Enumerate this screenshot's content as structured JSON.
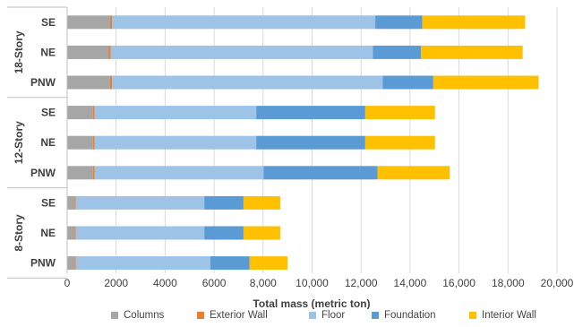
{
  "chart_data": {
    "type": "bar",
    "orientation": "horizontal",
    "stacked": true,
    "xlabel": "Total mass (metric ton)",
    "ylabel": "",
    "xlim": [
      0,
      20000
    ],
    "x_ticks": [
      0,
      2000,
      4000,
      6000,
      8000,
      10000,
      12000,
      14000,
      16000,
      18000,
      20000
    ],
    "x_tick_labels": [
      "0",
      "2000",
      "4000",
      "6000",
      "8,000",
      "10,000",
      "12,000",
      "14,000",
      "16,000",
      "18,000",
      "20,000"
    ],
    "grid": true,
    "legend_position": "bottom",
    "groups": [
      {
        "name": "18-Story",
        "categories": [
          "SE",
          "NE",
          "PNW"
        ]
      },
      {
        "name": "12-Story",
        "categories": [
          "SE",
          "NE",
          "PNW"
        ]
      },
      {
        "name": "8-Story",
        "categories": [
          "SE",
          "NE",
          "PNW"
        ]
      }
    ],
    "series": [
      {
        "name": "Columns",
        "color": "#a6a6a6",
        "values": [
          1750,
          1700,
          1750,
          1050,
          1050,
          1050,
          300,
          300,
          300
        ]
      },
      {
        "name": "Exterior Wall",
        "color": "#ed7d31",
        "values": [
          80,
          80,
          80,
          70,
          70,
          70,
          50,
          50,
          50
        ]
      },
      {
        "name": "Floor",
        "color": "#9dc3e6",
        "values": [
          10750,
          10700,
          11050,
          6600,
          6600,
          6900,
          5250,
          5250,
          5500
        ]
      },
      {
        "name": "Foundation",
        "color": "#5b9bd5",
        "values": [
          1920,
          1970,
          2070,
          4450,
          4450,
          4650,
          1600,
          1600,
          1600
        ]
      },
      {
        "name": "Interior Wall",
        "color": "#ffc000",
        "values": [
          4200,
          4150,
          4300,
          2850,
          2850,
          2950,
          1500,
          1500,
          1550
        ]
      }
    ]
  }
}
